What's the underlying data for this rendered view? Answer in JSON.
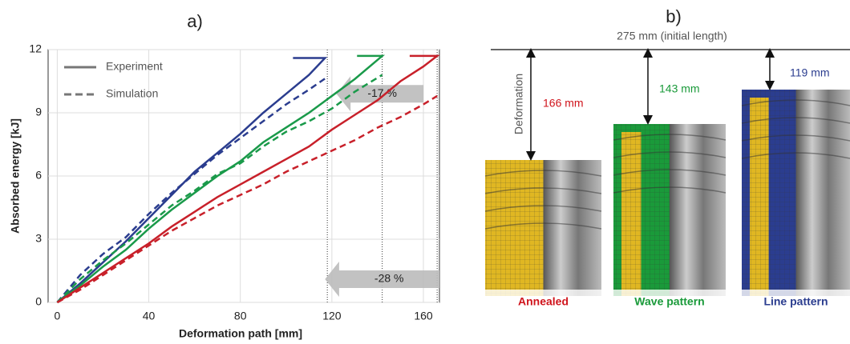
{
  "chart_data": {
    "type": "line",
    "title": "a)",
    "x_label": "Deformation path [mm]",
    "y_label": "Absorbed energy [kJ]",
    "xlim": [
      -4,
      167
    ],
    "ylim": [
      0,
      12
    ],
    "xticks": [
      0,
      40,
      80,
      120,
      160
    ],
    "yticks": [
      0,
      3,
      6,
      9,
      12
    ],
    "grid": true,
    "legend": [
      {
        "name": "Experiment",
        "dash": false,
        "color": "#777777"
      },
      {
        "name": "Simulation",
        "dash": true,
        "color": "#777777"
      }
    ],
    "legend_position": "upper left",
    "series": [
      {
        "color": "#2b3d8f",
        "dash": false,
        "x": [
          0,
          10,
          20,
          30,
          40,
          50,
          60,
          70,
          80,
          90,
          100,
          110,
          117,
          103
        ],
        "y": [
          0,
          0.9,
          1.9,
          2.9,
          4.0,
          5.1,
          6.2,
          7.1,
          8.0,
          9.0,
          9.9,
          10.8,
          11.6,
          11.6
        ]
      },
      {
        "color": "#2b3d8f",
        "dash": true,
        "x": [
          0,
          10,
          20,
          30,
          40,
          50,
          60,
          70,
          80,
          90,
          100,
          110,
          118
        ],
        "y": [
          0,
          1.3,
          2.3,
          3.1,
          4.2,
          5.2,
          6.1,
          7.0,
          7.8,
          8.6,
          9.4,
          10.1,
          10.7
        ]
      },
      {
        "color": "#1a9a4a",
        "dash": false,
        "x": [
          0,
          10,
          20,
          30,
          40,
          50,
          60,
          70,
          80,
          90,
          100,
          110,
          120,
          130,
          142,
          131
        ],
        "y": [
          0,
          0.8,
          1.7,
          2.5,
          3.5,
          4.4,
          5.2,
          6.0,
          6.7,
          7.6,
          8.3,
          9.0,
          9.8,
          10.6,
          11.7,
          11.7
        ]
      },
      {
        "color": "#1a9a4a",
        "dash": true,
        "x": [
          0,
          10,
          20,
          30,
          40,
          50,
          60,
          70,
          80,
          90,
          100,
          110,
          120,
          130,
          142
        ],
        "y": [
          0,
          1.1,
          2.0,
          2.8,
          3.7,
          4.6,
          5.3,
          6.1,
          6.6,
          7.4,
          8.1,
          8.6,
          9.2,
          10.0,
          10.8
        ]
      },
      {
        "color": "#c8202a",
        "dash": false,
        "x": [
          0,
          10,
          20,
          30,
          40,
          50,
          60,
          70,
          80,
          90,
          100,
          110,
          120,
          130,
          140,
          150,
          160,
          166,
          154
        ],
        "y": [
          0,
          0.7,
          1.4,
          2.1,
          2.8,
          3.6,
          4.3,
          5.0,
          5.6,
          6.2,
          6.8,
          7.4,
          8.2,
          8.9,
          9.6,
          10.5,
          11.2,
          11.7,
          11.7
        ]
      },
      {
        "color": "#c8202a",
        "dash": true,
        "x": [
          0,
          10,
          20,
          30,
          40,
          50,
          60,
          70,
          80,
          90,
          100,
          110,
          120,
          130,
          140,
          150,
          160,
          166
        ],
        "y": [
          0,
          0.6,
          1.3,
          2.0,
          2.7,
          3.4,
          4.0,
          4.6,
          5.1,
          5.6,
          6.2,
          6.7,
          7.2,
          7.7,
          8.3,
          8.8,
          9.4,
          9.8
        ]
      }
    ],
    "vlines": [
      118,
      142,
      166
    ],
    "annotations": [
      "-17 %",
      "-28 %"
    ]
  },
  "panel_b": {
    "title": "b)",
    "reference": "275 mm (initial length)",
    "axis_note": "Deformation",
    "samples": [
      {
        "label": "Annealed",
        "length": "166 mm",
        "color": "#d0141c"
      },
      {
        "label": "Wave pattern",
        "length": "143 mm",
        "color": "#1a9a3a"
      },
      {
        "label": "Line pattern",
        "length": "119 mm",
        "color": "#2b3d8f"
      }
    ]
  }
}
